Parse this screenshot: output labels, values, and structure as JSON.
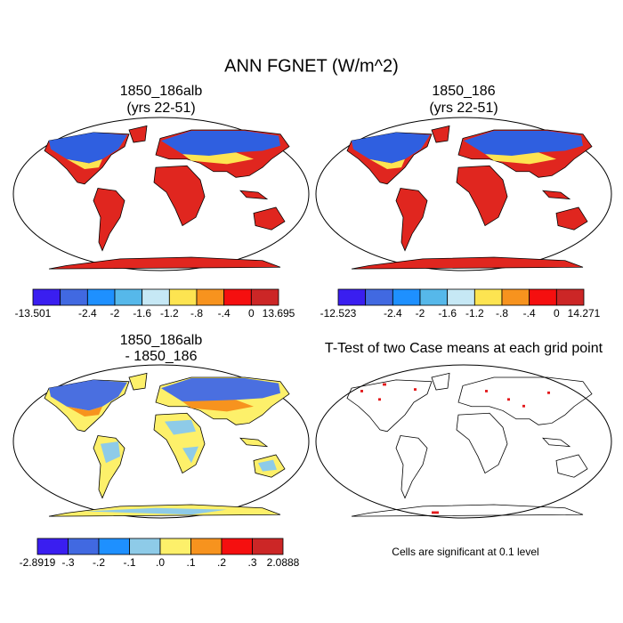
{
  "title": "ANN FGNET (W/m^2)",
  "panels": [
    {
      "title": [
        "1850_186alb",
        "(yrs 22-51)"
      ],
      "colorbar": {
        "colors": [
          "#3a1ef0",
          "#4169e1",
          "#1e90ff",
          "#56b8ea",
          "#c6e8f5",
          "#fde451",
          "#f7931e",
          "#f50f0f",
          "#cc2626"
        ],
        "labels": [
          "-13.501",
          null,
          "-2.4",
          "-2",
          "-1.6",
          "-1.2",
          "-.8",
          "-.4",
          "0",
          "13.695"
        ]
      }
    },
    {
      "title": [
        "1850_186",
        "(yrs 22-51)"
      ],
      "colorbar": {
        "colors": [
          "#3a1ef0",
          "#4169e1",
          "#1e90ff",
          "#56b8ea",
          "#c6e8f5",
          "#fde451",
          "#f7931e",
          "#f50f0f",
          "#cc2626"
        ],
        "labels": [
          "-12.523",
          null,
          "-2.4",
          "-2",
          "-1.6",
          "-1.2",
          "-.8",
          "-.4",
          "0",
          "14.271"
        ]
      }
    },
    {
      "title": [
        "1850_186alb",
        "- 1850_186"
      ],
      "colorbar": {
        "colors": [
          "#3a1ef0",
          "#4169e1",
          "#1e90ff",
          "#8ecbe8",
          "#fdf06a",
          "#f7931e",
          "#f50f0f",
          "#cc2626"
        ],
        "labels": [
          "-2.8919",
          "-.3",
          "-.2",
          "-.1",
          ".0",
          ".1",
          ".2",
          ".3",
          "2.0888"
        ]
      }
    },
    {
      "title": [
        "T-Test of two Case means at each grid point"
      ],
      "note": "Cells are significant at 0.1 level"
    }
  ]
}
